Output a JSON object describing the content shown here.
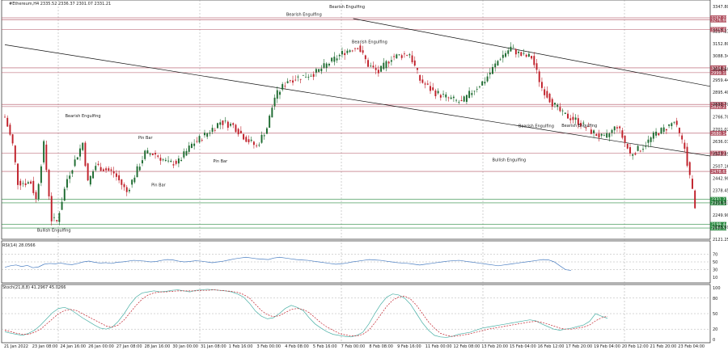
{
  "header": {
    "symbol_line": "#Ethereum,H4  2335.52 2336.37 2301.07 2331.21"
  },
  "rsi_label": "RSI(14) 28.0566",
  "stoch_label": "Stoch(21,8,8) 41.2967 45.0266",
  "colors": {
    "bull": "#1d6b30",
    "bear": "#c0202a",
    "rsi": "#4a7ec2",
    "stoch_main": "#4ab0a6",
    "stoch_signal": "#c0202a",
    "res_line": "#b05060",
    "sup_line": "#2a8a40",
    "trend": "#111111"
  },
  "chart_data": {
    "type": "candlestick",
    "y_ticks": [
      3347.8,
      3217.23,
      3152.8,
      3088.34,
      3018.6,
      2959.44,
      2895.4,
      2831.7,
      2766.7,
      2701.02,
      2636.01,
      2571.35,
      2507.16,
      2442.9,
      2378.45,
      2314.63,
      2249.9,
      2185.59,
      2121.25
    ],
    "x_labels": [
      "21 Jan 2022",
      "23 Jan 08:00",
      "24 Jan 16:00",
      "26 Jan 00:00",
      "27 Jan 08:00",
      "28 Jan 16:00",
      "30 Jan 00:00",
      "31 Jan 08:00",
      "1 Feb 16:00",
      "3 Feb 00:00",
      "4 Feb 08:00",
      "5 Feb 16:00",
      "7 Feb 00:00",
      "8 Feb 08:00",
      "9 Feb 16:00",
      "11 Feb 00:00",
      "12 Feb 08:00",
      "13 Feb 20:00",
      "15 Feb 04:00",
      "16 Feb 12:00",
      "17 Feb 20:00",
      "19 Feb 04:00",
      "20 Feb 12:00",
      "21 Feb 20:00",
      "23 Feb 04:00"
    ],
    "resistance_levels": [
      {
        "label": "3287.90",
        "value": 3287.9
      },
      {
        "label": "3276.60",
        "value": 3276.6
      },
      {
        "label": "3226.40",
        "value": 3226.4
      },
      {
        "label": "3024.36",
        "value": 3024.36
      },
      {
        "label": "2999.10",
        "value": 2999.1
      },
      {
        "label": "2831.79",
        "value": 2831.79
      },
      {
        "label": "2820.21",
        "value": 2820.21
      },
      {
        "label": "2680.14",
        "value": 2680.14
      },
      {
        "label": "2574.25",
        "value": 2574.25
      },
      {
        "label": "2478.63",
        "value": 2478.63
      }
    ],
    "support_levels": [
      {
        "label": "2331.21",
        "value": 2331.21
      },
      {
        "label": "2313.14",
        "value": 2313.14
      },
      {
        "label": "2199.44",
        "value": 2199.44
      },
      {
        "label": "2180.52",
        "value": 2180.52
      }
    ],
    "close_segments": [
      [
        0,
        2766
      ],
      [
        3,
        2620
      ],
      [
        5,
        2420
      ],
      [
        10,
        2420
      ],
      [
        12,
        2330
      ],
      [
        15,
        2620
      ],
      [
        18,
        2225
      ],
      [
        20,
        2215
      ],
      [
        24,
        2440
      ],
      [
        30,
        2630
      ],
      [
        32,
        2420
      ],
      [
        35,
        2510
      ],
      [
        42,
        2470
      ],
      [
        47,
        2370
      ],
      [
        54,
        2575
      ],
      [
        58,
        2570
      ],
      [
        63,
        2520
      ],
      [
        67,
        2530
      ],
      [
        72,
        2620
      ],
      [
        77,
        2670
      ],
      [
        83,
        2740
      ],
      [
        88,
        2720
      ],
      [
        93,
        2650
      ],
      [
        97,
        2610
      ],
      [
        101,
        2710
      ],
      [
        104,
        2870
      ],
      [
        109,
        2960
      ],
      [
        115,
        2980
      ],
      [
        120,
        3000
      ],
      [
        126,
        3060
      ],
      [
        131,
        3110
      ],
      [
        136,
        3140
      ],
      [
        140,
        3040
      ],
      [
        144,
        3000
      ],
      [
        149,
        3080
      ],
      [
        156,
        3100
      ],
      [
        160,
        2960
      ],
      [
        165,
        2900
      ],
      [
        170,
        2870
      ],
      [
        176,
        2840
      ],
      [
        180,
        2900
      ],
      [
        185,
        2960
      ],
      [
        191,
        3080
      ],
      [
        195,
        3130
      ],
      [
        199,
        3090
      ],
      [
        203,
        3080
      ],
      [
        207,
        2920
      ],
      [
        211,
        2840
      ],
      [
        215,
        2780
      ],
      [
        220,
        2750
      ],
      [
        226,
        2690
      ],
      [
        231,
        2650
      ],
      [
        236,
        2720
      ],
      [
        241,
        2570
      ],
      [
        246,
        2610
      ],
      [
        251,
        2680
      ],
      [
        254,
        2700
      ],
      [
        258,
        2740
      ],
      [
        262,
        2600
      ],
      [
        266,
        2300
      ]
    ],
    "annotations": [
      {
        "text": "Bearish Engulfing",
        "value": 3340,
        "at": 181
      },
      {
        "text": "Bearish Engulfing",
        "value": 3298,
        "at": 158
      },
      {
        "text": "Bearish Engulfing",
        "value": 3155,
        "at": 193
      },
      {
        "text": "Bearish Engulfing",
        "value": 2765,
        "at": 40
      },
      {
        "text": "Pin Bar",
        "value": 2650,
        "at": 79
      },
      {
        "text": "Pin Bar",
        "value": 2526,
        "at": 119
      },
      {
        "text": "Pin Bar",
        "value": 2400,
        "at": 86
      },
      {
        "text": "Bullish Engulfing",
        "value": 2162,
        "at": 25
      },
      {
        "text": "Bearish Engulfing",
        "value": 2712,
        "at": 282
      },
      {
        "text": "Bearish Engulfing",
        "value": 2713,
        "at": 305
      },
      {
        "text": "Bullish Engulfing",
        "value": 2533,
        "at": 268
      }
    ],
    "trendlines": [
      {
        "from": [
          0,
          3146
        ],
        "to": [
          374,
          2560
        ]
      },
      {
        "from": [
          186,
          3284
        ],
        "to": [
          374,
          2927
        ]
      }
    ],
    "rsi": {
      "levels": [
        70,
        50,
        30
      ],
      "ticks": [
        70,
        50,
        30,
        10
      ],
      "range": [
        0,
        100
      ],
      "values": [
        36,
        40,
        42,
        38,
        41,
        35,
        37,
        44,
        46,
        45,
        47,
        44,
        43,
        46,
        50,
        52,
        49,
        47,
        48,
        46,
        49,
        50,
        52,
        54,
        53,
        52,
        50,
        51,
        54,
        56,
        55,
        52,
        50,
        51,
        53,
        52,
        50,
        48,
        50,
        52,
        55,
        58,
        60,
        62,
        60,
        58,
        57,
        56,
        60,
        62,
        60,
        58,
        56,
        55,
        54,
        52,
        50,
        48,
        46,
        44,
        45,
        47,
        50,
        52,
        54,
        56,
        55,
        54,
        52,
        50,
        48,
        47,
        46,
        44,
        42,
        44,
        46,
        48,
        50,
        52,
        53,
        54,
        52,
        50,
        48,
        46,
        44,
        42,
        40,
        42,
        44,
        46,
        48,
        50,
        52,
        54,
        56,
        55,
        50,
        40,
        30,
        28
      ]
    },
    "stoch": {
      "levels": [
        80,
        50,
        20
      ],
      "ticks": [
        100,
        80,
        50,
        20,
        0
      ],
      "range": [
        0,
        100
      ],
      "main": [
        15,
        12,
        10,
        8,
        12,
        18,
        28,
        40,
        52,
        60,
        62,
        58,
        50,
        42,
        35,
        28,
        22,
        20,
        24,
        35,
        50,
        68,
        82,
        90,
        92,
        94,
        92,
        93,
        95,
        96,
        94,
        92,
        95,
        96,
        97,
        96,
        95,
        94,
        92,
        88,
        82,
        70,
        55,
        45,
        40,
        42,
        50,
        60,
        66,
        62,
        56,
        42,
        30,
        22,
        15,
        10,
        8,
        6,
        5,
        8,
        14,
        30,
        50,
        68,
        82,
        88,
        86,
        80,
        68,
        50,
        32,
        18,
        8,
        5,
        4,
        6,
        10,
        12,
        14,
        18,
        22,
        24,
        26,
        28,
        30,
        32,
        34,
        36,
        38,
        36,
        30,
        25,
        20,
        18,
        20,
        22,
        25,
        28,
        35,
        50,
        45,
        41
      ],
      "signal": [
        18,
        15,
        12,
        10,
        10,
        14,
        20,
        30,
        40,
        50,
        56,
        58,
        56,
        50,
        44,
        38,
        32,
        26,
        24,
        28,
        38,
        52,
        66,
        78,
        86,
        90,
        92,
        92,
        93,
        94,
        94,
        94,
        94,
        95,
        95,
        96,
        95,
        94,
        93,
        91,
        87,
        80,
        68,
        56,
        48,
        44,
        46,
        52,
        58,
        60,
        58,
        52,
        42,
        32,
        24,
        18,
        12,
        9,
        7,
        7,
        10,
        18,
        32,
        48,
        64,
        76,
        82,
        84,
        78,
        66,
        50,
        34,
        22,
        12,
        8,
        6,
        7,
        9,
        11,
        14,
        17,
        20,
        22,
        24,
        26,
        28,
        30,
        32,
        34,
        35,
        33,
        30,
        26,
        22,
        20,
        20,
        22,
        24,
        28,
        36,
        42,
        45
      ]
    }
  }
}
